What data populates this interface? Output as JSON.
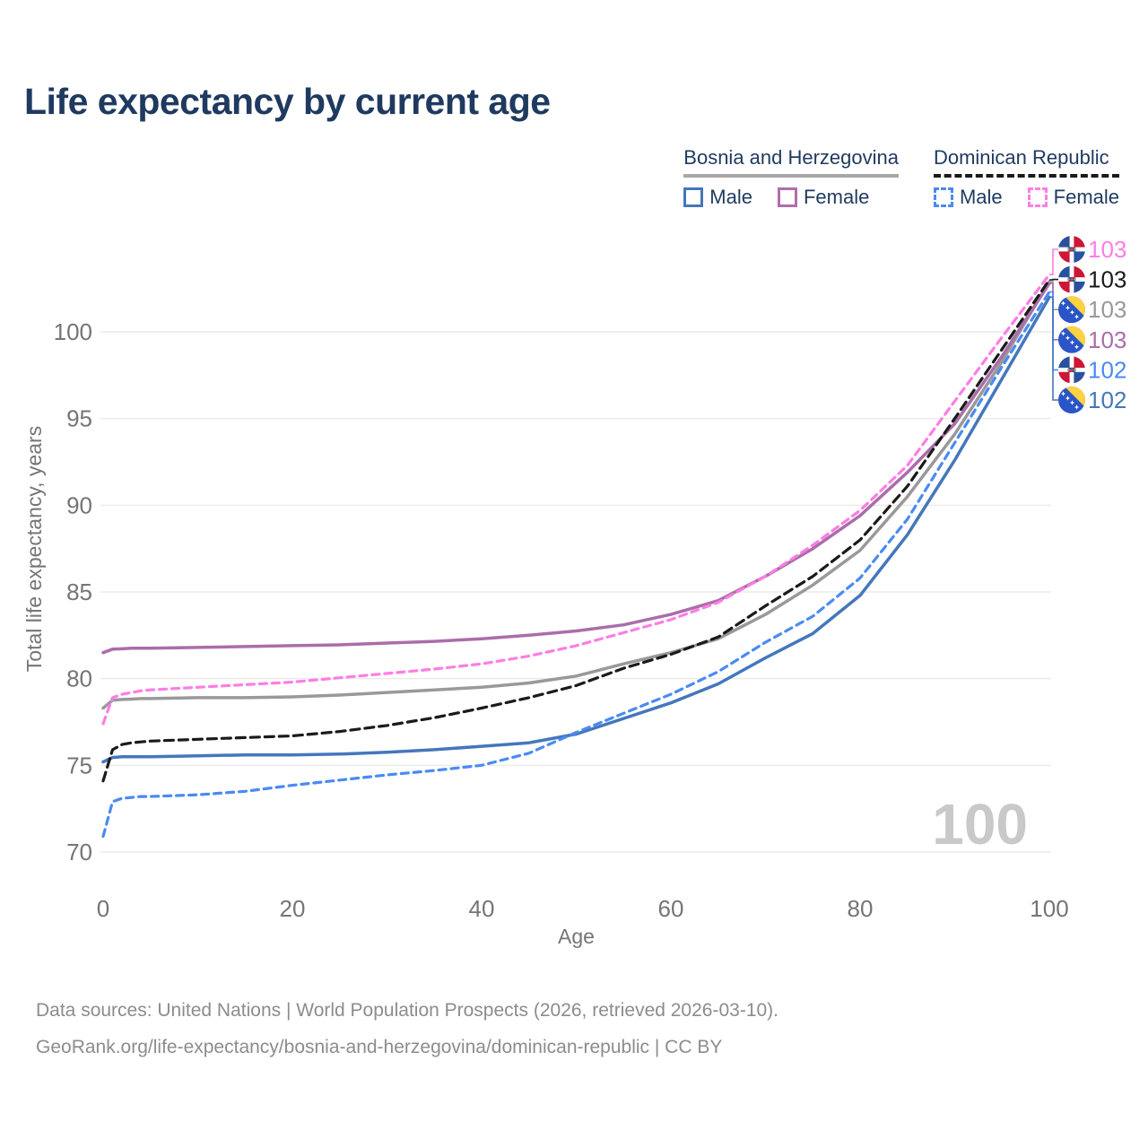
{
  "title": "Life expectancy by current age",
  "legend": {
    "groups": [
      {
        "label": "Bosnia and Herzegovina",
        "style": "solid",
        "items": [
          {
            "label": "Male",
            "color": "#4477bb"
          },
          {
            "label": "Female",
            "color": "#b06dad"
          }
        ]
      },
      {
        "label": "Dominican Republic",
        "style": "dashed",
        "items": [
          {
            "label": "Male",
            "color": "#4a8af4"
          },
          {
            "label": "Female",
            "color": "#ff7de4"
          }
        ]
      }
    ]
  },
  "chart_data": {
    "type": "line",
    "title": "Life expectancy by current age",
    "xlabel": "Age",
    "ylabel": "Total life expectancy, years",
    "xlim": [
      0,
      100
    ],
    "ylim": [
      69,
      104.5
    ],
    "x_ticks": [
      0,
      20,
      40,
      60,
      80,
      100
    ],
    "y_ticks": [
      70,
      75,
      80,
      85,
      90,
      95,
      100
    ],
    "grid": "horizontal",
    "legend_position": "top-right",
    "watermark": "100",
    "x": [
      0,
      1,
      2,
      3,
      4,
      5,
      10,
      15,
      20,
      25,
      30,
      35,
      40,
      45,
      50,
      55,
      60,
      65,
      70,
      75,
      80,
      85,
      90,
      95,
      100
    ],
    "series": [
      {
        "name": "Bosnia and Herzegovina — Both sexes",
        "country": "ba",
        "color": "#999999",
        "dash": null,
        "values": [
          78.3,
          78.75,
          78.8,
          78.82,
          78.85,
          78.85,
          78.9,
          78.9,
          78.95,
          79.05,
          79.2,
          79.35,
          79.5,
          79.75,
          80.15,
          80.85,
          81.5,
          82.3,
          83.7,
          85.4,
          87.4,
          90.5,
          94.1,
          98.3,
          102.9
        ],
        "end_label": "103"
      },
      {
        "name": "Bosnia and Herzegovina — Female",
        "country": "ba",
        "color": "#ab6daa",
        "dash": null,
        "values": [
          81.5,
          81.7,
          81.72,
          81.75,
          81.75,
          81.75,
          81.8,
          81.85,
          81.9,
          81.95,
          82.05,
          82.15,
          82.3,
          82.5,
          82.75,
          83.1,
          83.7,
          84.5,
          85.9,
          87.5,
          89.4,
          91.9,
          94.7,
          98.6,
          102.8
        ],
        "end_label": "103"
      },
      {
        "name": "Bosnia and Herzegovina — Male",
        "country": "ba",
        "color": "#4477bb",
        "dash": null,
        "values": [
          75.2,
          75.45,
          75.5,
          75.5,
          75.5,
          75.5,
          75.55,
          75.6,
          75.6,
          75.65,
          75.75,
          75.9,
          76.1,
          76.3,
          76.8,
          77.7,
          78.6,
          79.7,
          81.2,
          82.6,
          84.8,
          88.3,
          92.6,
          97.3,
          102.0
        ],
        "end_label": "102"
      },
      {
        "name": "Dominican Republic — Both sexes",
        "country": "do",
        "color": "#1a1a1a",
        "dash": [
          10,
          6
        ],
        "values": [
          74.1,
          75.9,
          76.2,
          76.3,
          76.35,
          76.4,
          76.5,
          76.6,
          76.7,
          76.95,
          77.3,
          77.75,
          78.3,
          78.9,
          79.6,
          80.6,
          81.4,
          82.4,
          84.2,
          85.9,
          88.0,
          91.1,
          95.0,
          99.0,
          103.0
        ],
        "end_label": "103"
      },
      {
        "name": "Dominican Republic — Female",
        "country": "do",
        "color": "#ff7de4",
        "dash": [
          8,
          6
        ],
        "values": [
          77.4,
          78.9,
          79.1,
          79.2,
          79.3,
          79.35,
          79.5,
          79.65,
          79.8,
          80.05,
          80.3,
          80.55,
          80.85,
          81.3,
          81.9,
          82.65,
          83.4,
          84.4,
          85.9,
          87.7,
          89.7,
          92.3,
          96.0,
          99.7,
          103.3
        ],
        "end_label": "103"
      },
      {
        "name": "Dominican Republic — Male",
        "country": "do",
        "color": "#4a8af4",
        "dash": [
          8,
          6
        ],
        "values": [
          70.9,
          72.9,
          73.1,
          73.15,
          73.2,
          73.2,
          73.3,
          73.5,
          73.85,
          74.15,
          74.45,
          74.7,
          75.0,
          75.7,
          76.9,
          78.0,
          79.1,
          80.4,
          82.1,
          83.6,
          85.8,
          89.2,
          93.6,
          98.0,
          102.3
        ],
        "end_label": "102"
      }
    ]
  },
  "flags": {
    "ba": {
      "bg": "#2a55c8",
      "triangle": "#ffd23f",
      "stars": "#ffffff"
    },
    "do": {
      "blue": "#2a50a0",
      "red": "#ce1636",
      "cross": "#ffffff"
    }
  },
  "colors": {
    "title": "#1f3a5f",
    "axis_text": "#757575",
    "grid": "#ebebeb",
    "watermark": "#c9c9c9",
    "footer": "#8c8c8c"
  },
  "footer": {
    "line1": "Data sources: United Nations | World Population Prospects (2026, retrieved 2026-03-10).",
    "line2": "GeoRank.org/life-expectancy/bosnia-and-herzegovina/dominican-republic | CC BY"
  }
}
